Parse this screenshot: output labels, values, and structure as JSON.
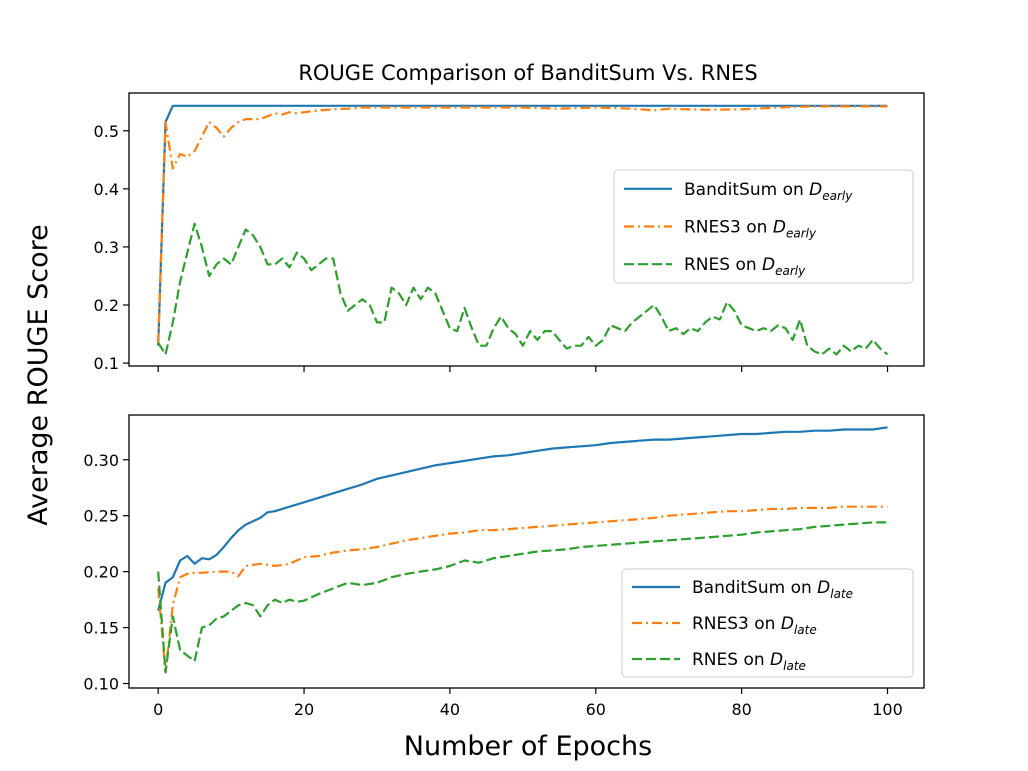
{
  "figure": {
    "title": "ROUGE Comparison of BanditSum Vs. RNES",
    "ylabel": "Average ROUGE Score",
    "xlabel": "Number of Epochs"
  },
  "colors": {
    "banditsum": "#1f77b4",
    "rnes3": "#ff7f0e",
    "rnes": "#2ca02c"
  },
  "chart_data": [
    {
      "type": "line",
      "xlim": [
        -4,
        105
      ],
      "ylim": [
        0.095,
        0.565
      ],
      "yticks": [
        0.1,
        0.2,
        0.3,
        0.4,
        0.5
      ],
      "ytick_labels": [
        "0.1",
        "0.2",
        "0.3",
        "0.4",
        "0.5"
      ],
      "xticks": [
        0,
        20,
        40,
        60,
        80,
        100
      ],
      "xtick_labels": [],
      "legend_position": "center-right",
      "series": [
        {
          "name": "BanditSum on D",
          "subscript": "early",
          "style": "solid",
          "color": "#1f77b4",
          "x": [
            0,
            1,
            2,
            3,
            5,
            10,
            20,
            30,
            40,
            50,
            60,
            70,
            80,
            90,
            100
          ],
          "y": [
            0.13,
            0.515,
            0.543,
            0.543,
            0.543,
            0.543,
            0.543,
            0.543,
            0.543,
            0.543,
            0.543,
            0.543,
            0.543,
            0.543,
            0.543
          ]
        },
        {
          "name": "RNES3 on D",
          "subscript": "early",
          "style": "dashdot",
          "color": "#ff7f0e",
          "x": [
            0,
            1,
            2,
            3,
            4,
            5,
            6,
            7,
            8,
            9,
            10,
            11,
            12,
            13,
            14,
            15,
            16,
            17,
            18,
            19,
            20,
            22,
            24,
            26,
            28,
            30,
            35,
            40,
            45,
            50,
            55,
            60,
            65,
            68,
            70,
            75,
            80,
            85,
            90,
            95,
            100
          ],
          "y": [
            0.135,
            0.515,
            0.435,
            0.46,
            0.455,
            0.465,
            0.49,
            0.515,
            0.505,
            0.49,
            0.505,
            0.515,
            0.52,
            0.52,
            0.52,
            0.525,
            0.53,
            0.528,
            0.532,
            0.53,
            0.532,
            0.535,
            0.537,
            0.538,
            0.54,
            0.54,
            0.54,
            0.54,
            0.54,
            0.54,
            0.538,
            0.54,
            0.538,
            0.535,
            0.538,
            0.536,
            0.537,
            0.54,
            0.542,
            0.542,
            0.542
          ]
        },
        {
          "name": "RNES on D",
          "subscript": "early",
          "style": "dashed",
          "color": "#2ca02c",
          "x": [
            0,
            1,
            2,
            3,
            4,
            5,
            6,
            7,
            8,
            9,
            10,
            11,
            12,
            13,
            14,
            15,
            16,
            17,
            18,
            19,
            20,
            21,
            22,
            23,
            24,
            25,
            26,
            27,
            28,
            29,
            30,
            31,
            32,
            33,
            34,
            35,
            36,
            37,
            38,
            39,
            40,
            41,
            42,
            43,
            44,
            45,
            46,
            47,
            48,
            49,
            50,
            51,
            52,
            53,
            54,
            55,
            56,
            57,
            58,
            59,
            60,
            61,
            62,
            63,
            64,
            65,
            66,
            67,
            68,
            69,
            70,
            71,
            72,
            73,
            74,
            75,
            76,
            77,
            78,
            79,
            80,
            81,
            82,
            83,
            84,
            85,
            86,
            87,
            88,
            89,
            90,
            91,
            92,
            93,
            94,
            95,
            96,
            97,
            98,
            99,
            100
          ],
          "y": [
            0.135,
            0.115,
            0.17,
            0.24,
            0.29,
            0.34,
            0.3,
            0.25,
            0.27,
            0.28,
            0.27,
            0.3,
            0.33,
            0.32,
            0.3,
            0.27,
            0.27,
            0.28,
            0.265,
            0.29,
            0.28,
            0.26,
            0.27,
            0.28,
            0.28,
            0.22,
            0.19,
            0.2,
            0.21,
            0.2,
            0.17,
            0.17,
            0.23,
            0.22,
            0.2,
            0.23,
            0.21,
            0.23,
            0.22,
            0.19,
            0.16,
            0.155,
            0.195,
            0.16,
            0.13,
            0.13,
            0.16,
            0.18,
            0.16,
            0.15,
            0.13,
            0.155,
            0.14,
            0.155,
            0.155,
            0.14,
            0.125,
            0.13,
            0.13,
            0.145,
            0.13,
            0.14,
            0.165,
            0.16,
            0.155,
            0.17,
            0.18,
            0.19,
            0.2,
            0.18,
            0.155,
            0.16,
            0.15,
            0.16,
            0.155,
            0.17,
            0.18,
            0.175,
            0.205,
            0.19,
            0.165,
            0.16,
            0.155,
            0.16,
            0.155,
            0.165,
            0.16,
            0.14,
            0.175,
            0.13,
            0.12,
            0.115,
            0.125,
            0.115,
            0.13,
            0.12,
            0.13,
            0.125,
            0.14,
            0.125,
            0.115
          ]
        }
      ]
    },
    {
      "type": "line",
      "xlim": [
        -4,
        105
      ],
      "ylim": [
        0.096,
        0.34
      ],
      "yticks": [
        0.1,
        0.15,
        0.2,
        0.25,
        0.3
      ],
      "ytick_labels": [
        "0.10",
        "0.15",
        "0.20",
        "0.25",
        "0.30"
      ],
      "xticks": [
        0,
        20,
        40,
        60,
        80,
        100
      ],
      "xtick_labels": [
        "0",
        "20",
        "40",
        "60",
        "80",
        "100"
      ],
      "legend_position": "bottom-right",
      "series": [
        {
          "name": "BanditSum on D",
          "subscript": "late",
          "style": "solid",
          "color": "#1f77b4",
          "x": [
            0,
            1,
            2,
            3,
            4,
            5,
            6,
            7,
            8,
            9,
            10,
            11,
            12,
            13,
            14,
            15,
            16,
            18,
            20,
            22,
            24,
            26,
            28,
            30,
            32,
            34,
            36,
            38,
            40,
            42,
            44,
            46,
            48,
            50,
            52,
            54,
            56,
            58,
            60,
            62,
            64,
            66,
            68,
            70,
            72,
            74,
            76,
            78,
            80,
            82,
            84,
            86,
            88,
            90,
            92,
            94,
            96,
            98,
            100
          ],
          "y": [
            0.165,
            0.19,
            0.195,
            0.21,
            0.214,
            0.207,
            0.212,
            0.211,
            0.215,
            0.222,
            0.23,
            0.237,
            0.242,
            0.245,
            0.248,
            0.253,
            0.254,
            0.258,
            0.262,
            0.266,
            0.27,
            0.274,
            0.278,
            0.283,
            0.286,
            0.289,
            0.292,
            0.295,
            0.297,
            0.299,
            0.301,
            0.303,
            0.304,
            0.306,
            0.308,
            0.31,
            0.311,
            0.312,
            0.313,
            0.315,
            0.316,
            0.317,
            0.318,
            0.318,
            0.319,
            0.32,
            0.321,
            0.322,
            0.323,
            0.323,
            0.324,
            0.325,
            0.325,
            0.326,
            0.326,
            0.327,
            0.327,
            0.327,
            0.329
          ]
        },
        {
          "name": "RNES3 on D",
          "subscript": "late",
          "style": "dashdot",
          "color": "#ff7f0e",
          "x": [
            0,
            1,
            2,
            3,
            4,
            5,
            6,
            8,
            10,
            11,
            12,
            14,
            16,
            18,
            20,
            22,
            24,
            26,
            28,
            30,
            32,
            34,
            36,
            38,
            40,
            42,
            44,
            46,
            48,
            50,
            52,
            54,
            56,
            58,
            60,
            62,
            64,
            66,
            68,
            70,
            72,
            74,
            76,
            78,
            80,
            82,
            84,
            86,
            88,
            90,
            92,
            94,
            96,
            98,
            100
          ],
          "y": [
            0.185,
            0.11,
            0.17,
            0.195,
            0.198,
            0.199,
            0.199,
            0.2,
            0.2,
            0.196,
            0.205,
            0.207,
            0.205,
            0.207,
            0.213,
            0.214,
            0.217,
            0.219,
            0.22,
            0.222,
            0.225,
            0.228,
            0.23,
            0.232,
            0.234,
            0.235,
            0.237,
            0.237,
            0.238,
            0.239,
            0.24,
            0.241,
            0.242,
            0.243,
            0.244,
            0.245,
            0.246,
            0.247,
            0.248,
            0.25,
            0.251,
            0.252,
            0.253,
            0.254,
            0.254,
            0.255,
            0.256,
            0.256,
            0.257,
            0.257,
            0.257,
            0.258,
            0.258,
            0.258,
            0.258
          ]
        },
        {
          "name": "RNES on D",
          "subscript": "late",
          "style": "dashed",
          "color": "#2ca02c",
          "x": [
            0,
            1,
            2,
            3,
            4,
            5,
            6,
            7,
            8,
            9,
            10,
            11,
            12,
            13,
            14,
            15,
            16,
            17,
            18,
            19,
            20,
            22,
            24,
            26,
            28,
            30,
            32,
            34,
            36,
            38,
            40,
            42,
            44,
            46,
            48,
            50,
            52,
            54,
            56,
            58,
            60,
            62,
            64,
            66,
            68,
            70,
            72,
            74,
            76,
            78,
            80,
            82,
            84,
            86,
            88,
            90,
            92,
            94,
            96,
            98,
            100
          ],
          "y": [
            0.2,
            0.11,
            0.16,
            0.13,
            0.125,
            0.12,
            0.15,
            0.152,
            0.158,
            0.16,
            0.165,
            0.17,
            0.172,
            0.17,
            0.16,
            0.17,
            0.175,
            0.172,
            0.175,
            0.173,
            0.174,
            0.18,
            0.185,
            0.19,
            0.188,
            0.19,
            0.195,
            0.198,
            0.2,
            0.202,
            0.205,
            0.21,
            0.208,
            0.212,
            0.214,
            0.216,
            0.218,
            0.219,
            0.22,
            0.222,
            0.223,
            0.224,
            0.225,
            0.226,
            0.227,
            0.228,
            0.229,
            0.23,
            0.231,
            0.232,
            0.233,
            0.235,
            0.236,
            0.237,
            0.238,
            0.24,
            0.241,
            0.242,
            0.243,
            0.244,
            0.244
          ]
        }
      ]
    }
  ]
}
